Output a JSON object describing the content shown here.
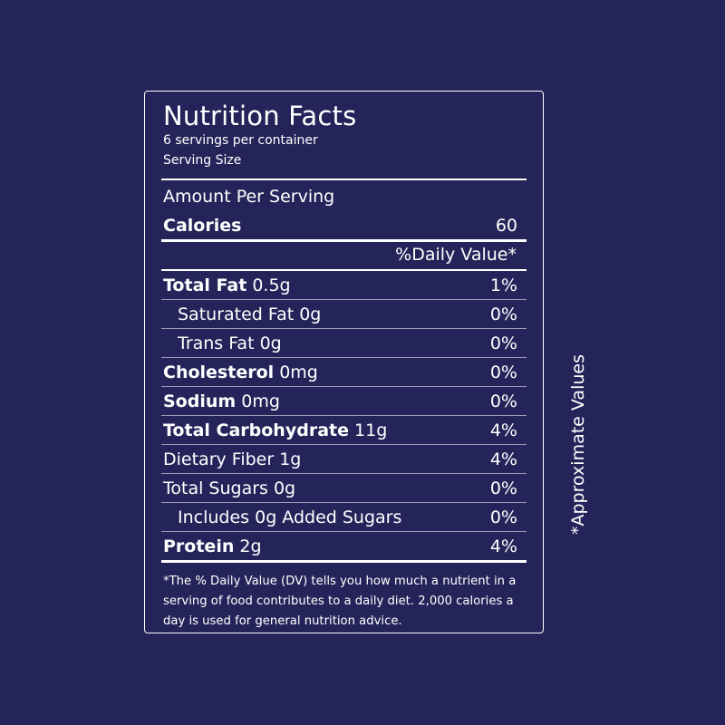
{
  "label": {
    "title": "Nutrition Facts",
    "servings_per_container": "6 servings per container",
    "serving_size": "Serving Size",
    "amount_per_serving": "Amount Per Serving",
    "calories_label": "Calories",
    "calories_value": "60",
    "daily_value_header": "%Daily Value*",
    "nutrients": [
      {
        "name": "Total Fat",
        "amount": "0.5g",
        "dv": "1%"
      },
      {
        "name": "Saturated Fat 0g",
        "dv": "0%"
      },
      {
        "name": "Trans Fat 0g",
        "dv": "0%"
      },
      {
        "name": "Cholesterol",
        "amount": "0mg",
        "dv": "0%"
      },
      {
        "name": "Sodium",
        "amount": "0mg",
        "dv": "0%"
      },
      {
        "name": "Total Carbohydrate",
        "amount": "11g",
        "dv": "4%"
      },
      {
        "name": "Dietary Fiber 1g",
        "dv": "4%"
      },
      {
        "name": "Total Sugars 0g",
        "dv": "0%"
      },
      {
        "name": "Includes 0g Added Sugars",
        "dv": "0%"
      },
      {
        "name": "Protein",
        "amount": "2g",
        "dv": "4%"
      }
    ],
    "footnote": "*The % Daily Value (DV) tells you how much a nutrient in a serving of food contributes to a daily diet. 2,000 calories a day is used for general nutrition advice."
  },
  "side_note": "*Approximate Values",
  "colors": {
    "background": "#25245a",
    "text": "#ffffff"
  }
}
